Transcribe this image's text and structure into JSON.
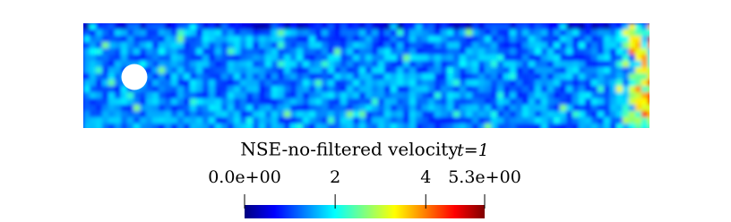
{
  "chart_data": {
    "type": "colorfield",
    "title": "NSE-no-filtered velocity",
    "time_label": "t=1",
    "colormap": "jet",
    "clim": [
      0,
      5.3
    ],
    "cticks": [
      {
        "value": 0,
        "label": "0.0e+00"
      },
      2,
      4,
      {
        "value": 5.3,
        "label": "5.3e+00"
      }
    ]
  }
}
